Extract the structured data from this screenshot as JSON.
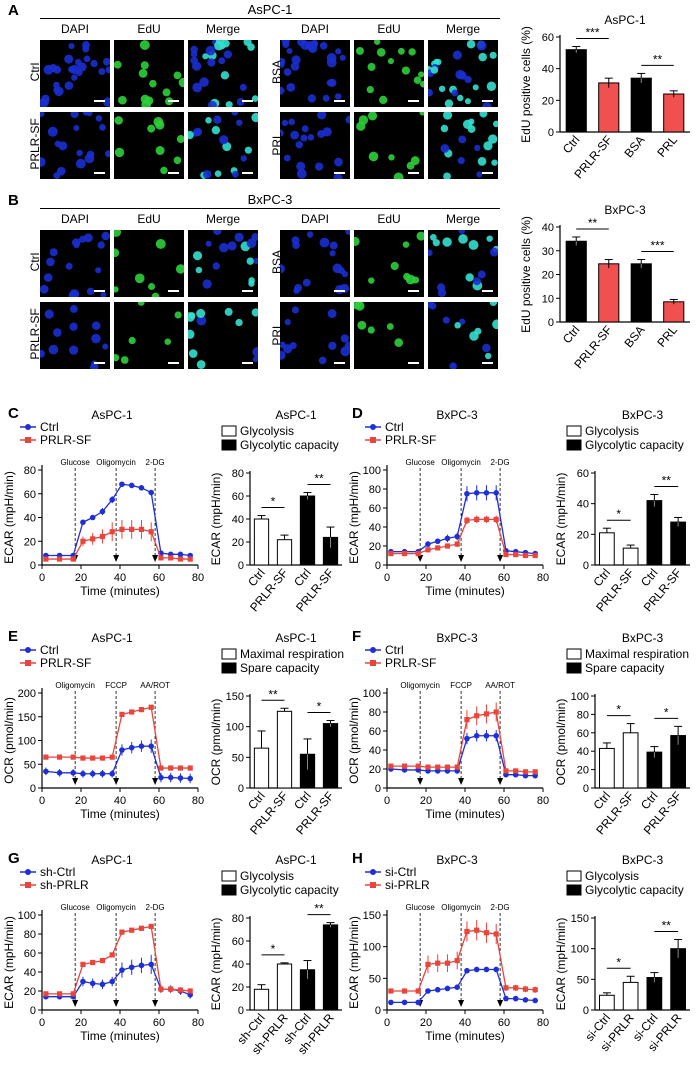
{
  "panel_labels": [
    "A",
    "B",
    "C",
    "D",
    "E",
    "F",
    "G",
    "H"
  ],
  "micro_cols": {
    "dapi": "DAPI",
    "edu": "EdU",
    "merge": "Merge"
  },
  "A": {
    "title": "AsPC-1",
    "rows_left": [
      "Ctrl",
      "PRLR-SF"
    ],
    "rows_right": [
      "BSA",
      "PRL"
    ]
  },
  "B": {
    "title": "BxPC-3",
    "rows_left": [
      "Ctrl",
      "PRLR-SF"
    ],
    "rows_right": [
      "BSA",
      "PRL"
    ]
  },
  "colors": {
    "ctrl": "#1f2fd6",
    "treat": "#e8453c",
    "bar_red": "#f05050",
    "bar_black": "#000000",
    "dapi": "#1a2fd0",
    "edu": "#2ccf3a",
    "merge": "#33e0d0"
  },
  "chart_data": [
    {
      "id": "A-bar",
      "type": "bar",
      "title": "AsPC-1",
      "ylabel": "EdU positive cells (%)",
      "categories": [
        "Ctrl",
        "PRLR-SF",
        "BSA",
        "PRL"
      ],
      "values": [
        52,
        31,
        34,
        24
      ],
      "errors": [
        2,
        3,
        3,
        2
      ],
      "fills": [
        "#000",
        "#f05050",
        "#000",
        "#f05050"
      ],
      "ylim": [
        0,
        60
      ],
      "yticks": [
        0,
        20,
        40,
        60
      ],
      "sig": [
        {
          "from": 0,
          "to": 1,
          "label": "***"
        },
        {
          "from": 2,
          "to": 3,
          "label": "**"
        }
      ]
    },
    {
      "id": "B-bar",
      "type": "bar",
      "title": "BxPC-3",
      "ylabel": "EdU positive cells (%)",
      "categories": [
        "Ctrl",
        "PRLR-SF",
        "BSA",
        "PRL"
      ],
      "values": [
        34,
        24.5,
        24.5,
        8.5
      ],
      "errors": [
        1.8,
        1.8,
        1.8,
        1
      ],
      "fills": [
        "#000",
        "#f05050",
        "#000",
        "#f05050"
      ],
      "ylim": [
        0,
        40
      ],
      "yticks": [
        0,
        10,
        20,
        30,
        40
      ],
      "sig": [
        {
          "from": 0,
          "to": 1,
          "label": "**"
        },
        {
          "from": 2,
          "to": 3,
          "label": "***"
        }
      ]
    },
    {
      "id": "C-line",
      "type": "line",
      "title": "AsPC-1",
      "xlabel": "Time (minutes)",
      "ylabel": "ECAR (mpH/min)",
      "xlim": [
        0,
        80
      ],
      "ylim": [
        0,
        80
      ],
      "xticks": [
        0,
        20,
        40,
        60,
        80
      ],
      "yticks": [
        0,
        20,
        40,
        60,
        80
      ],
      "markers": [
        {
          "x": 17,
          "label": "Glucose"
        },
        {
          "x": 38,
          "label": "Oligomycin"
        },
        {
          "x": 58,
          "label": "2-DG"
        }
      ],
      "x": [
        2,
        9,
        16,
        21,
        26,
        31,
        36,
        41,
        46,
        51,
        56,
        61,
        66,
        71,
        76
      ],
      "series": [
        {
          "name": "Ctrl",
          "values": [
            8,
            8,
            8,
            36,
            40,
            45,
            55,
            68,
            67,
            65,
            61,
            10,
            9,
            9,
            8
          ],
          "err": [
            1,
            1,
            1,
            2,
            2,
            3,
            3,
            2,
            2,
            2,
            2,
            1,
            1,
            1,
            1
          ]
        },
        {
          "name": "PRLR-SF",
          "values": [
            5,
            5,
            5,
            20,
            22,
            24,
            28,
            30,
            30,
            30,
            28,
            6,
            6,
            5,
            5
          ],
          "err": [
            1,
            1,
            1,
            4,
            5,
            6,
            8,
            8,
            8,
            8,
            8,
            1,
            1,
            1,
            1
          ]
        }
      ]
    },
    {
      "id": "C-bar",
      "type": "bar",
      "title": "AsPC-1",
      "ylabel": "ECAR (mpH/min)",
      "legend": [
        "Glycolysis",
        "Glycolytic capacity"
      ],
      "categories": [
        "Ctrl",
        "PRLR-SF",
        "Ctrl",
        "PRLR-SF"
      ],
      "values": [
        40,
        22,
        60,
        24
      ],
      "errors": [
        3,
        4,
        3,
        9
      ],
      "fills": [
        "#fff",
        "#fff",
        "#000",
        "#000"
      ],
      "ylim": [
        0,
        80
      ],
      "yticks": [
        0,
        20,
        40,
        60,
        80
      ],
      "sig": [
        {
          "from": 0,
          "to": 1,
          "label": "*"
        },
        {
          "from": 2,
          "to": 3,
          "label": "**"
        }
      ]
    },
    {
      "id": "D-line",
      "type": "line",
      "title": "BxPC-3",
      "xlabel": "Time (minutes)",
      "ylabel": "ECAR (mpH/min)",
      "xlim": [
        0,
        80
      ],
      "ylim": [
        0,
        100
      ],
      "xticks": [
        0,
        20,
        40,
        60,
        80
      ],
      "yticks": [
        0,
        20,
        40,
        60,
        80,
        100
      ],
      "markers": [
        {
          "x": 17,
          "label": "Glucose"
        },
        {
          "x": 38,
          "label": "Oligomycin"
        },
        {
          "x": 58,
          "label": "2-DG"
        }
      ],
      "x": [
        2,
        9,
        16,
        21,
        26,
        31,
        36,
        41,
        46,
        51,
        56,
        61,
        66,
        71,
        76
      ],
      "series": [
        {
          "name": "Ctrl",
          "values": [
            14,
            14,
            14,
            22,
            25,
            28,
            30,
            75,
            76,
            76,
            76,
            15,
            14,
            13,
            12
          ],
          "err": [
            2,
            2,
            2,
            3,
            3,
            4,
            4,
            8,
            8,
            8,
            8,
            2,
            2,
            2,
            2
          ]
        },
        {
          "name": "PRLR-SF",
          "values": [
            12,
            12,
            12,
            16,
            18,
            20,
            22,
            47,
            48,
            48,
            48,
            11,
            11,
            10,
            10
          ],
          "err": [
            1,
            1,
            1,
            2,
            2,
            2,
            3,
            4,
            4,
            4,
            4,
            1,
            1,
            1,
            1
          ]
        }
      ]
    },
    {
      "id": "D-bar",
      "type": "bar",
      "title": "BxPC-3",
      "ylabel": "ECAR (mpH/min)",
      "legend": [
        "Glycolysis",
        "Glycolytic capacity"
      ],
      "categories": [
        "Ctrl",
        "PRLR-SF",
        "Ctrl",
        "PRLR-SF"
      ],
      "values": [
        21,
        11,
        42,
        28
      ],
      "errors": [
        3,
        2,
        4,
        3
      ],
      "fills": [
        "#fff",
        "#fff",
        "#000",
        "#000"
      ],
      "ylim": [
        0,
        60
      ],
      "yticks": [
        0,
        20,
        40,
        60
      ],
      "sig": [
        {
          "from": 0,
          "to": 1,
          "label": "*"
        },
        {
          "from": 2,
          "to": 3,
          "label": "**"
        }
      ]
    },
    {
      "id": "E-line",
      "type": "line",
      "title": "AsPC-1",
      "xlabel": "Time (minutes)",
      "ylabel": "OCR (pmol/min)",
      "xlim": [
        0,
        80
      ],
      "ylim": [
        0,
        200
      ],
      "xticks": [
        0,
        20,
        40,
        60,
        80
      ],
      "yticks": [
        0,
        50,
        100,
        150,
        200
      ],
      "markers": [
        {
          "x": 17,
          "label": "Oligomycin"
        },
        {
          "x": 38,
          "label": "FCCP"
        },
        {
          "x": 58,
          "label": "AA/ROT"
        }
      ],
      "x": [
        2,
        9,
        16,
        21,
        26,
        31,
        36,
        41,
        46,
        51,
        56,
        61,
        66,
        71,
        76
      ],
      "series": [
        {
          "name": "Ctrl",
          "values": [
            35,
            32,
            32,
            30,
            30,
            30,
            30,
            80,
            85,
            88,
            88,
            22,
            22,
            21,
            20
          ],
          "err": [
            8,
            8,
            8,
            8,
            8,
            8,
            8,
            12,
            12,
            12,
            14,
            10,
            10,
            10,
            10
          ]
        },
        {
          "name": "PRLR-SF",
          "values": [
            65,
            65,
            65,
            63,
            63,
            63,
            65,
            155,
            160,
            165,
            170,
            42,
            42,
            42,
            42
          ],
          "err": [
            3,
            3,
            3,
            3,
            3,
            3,
            3,
            4,
            4,
            4,
            4,
            3,
            3,
            3,
            3
          ]
        }
      ]
    },
    {
      "id": "E-bar",
      "type": "bar",
      "title": "AsPC-1",
      "ylabel": "OCR (pmol/min)",
      "legend": [
        "Maximal respiration",
        "Spare capacity"
      ],
      "categories": [
        "Ctrl",
        "PRLR-SF",
        "Ctrl",
        "PRLR-SF"
      ],
      "values": [
        65,
        125,
        55,
        105
      ],
      "errors": [
        28,
        5,
        25,
        5
      ],
      "fills": [
        "#fff",
        "#fff",
        "#000",
        "#000"
      ],
      "ylim": [
        0,
        150
      ],
      "yticks": [
        0,
        50,
        100,
        150
      ],
      "sig": [
        {
          "from": 0,
          "to": 1,
          "label": "**"
        },
        {
          "from": 2,
          "to": 3,
          "label": "*"
        }
      ]
    },
    {
      "id": "F-line",
      "type": "line",
      "title": "BxPC-3",
      "xlabel": "Time (minutes)",
      "ylabel": "OCR (pmol/min)",
      "xlim": [
        0,
        80
      ],
      "ylim": [
        0,
        100
      ],
      "xticks": [
        0,
        20,
        40,
        60,
        80
      ],
      "yticks": [
        0,
        20,
        40,
        60,
        80,
        100
      ],
      "markers": [
        {
          "x": 17,
          "label": "Oligomycin"
        },
        {
          "x": 38,
          "label": "FCCP"
        },
        {
          "x": 58,
          "label": "AA/ROT"
        }
      ],
      "x": [
        2,
        9,
        16,
        21,
        26,
        31,
        36,
        41,
        46,
        51,
        56,
        61,
        66,
        71,
        76
      ],
      "series": [
        {
          "name": "Ctrl",
          "values": [
            20,
            19,
            19,
            18,
            18,
            18,
            18,
            52,
            55,
            55,
            55,
            14,
            14,
            13,
            13
          ],
          "err": [
            1,
            1,
            1,
            1,
            1,
            1,
            1,
            6,
            6,
            6,
            6,
            1,
            1,
            1,
            1
          ]
        },
        {
          "name": "PRLR-SF",
          "values": [
            23,
            23,
            23,
            22,
            22,
            22,
            22,
            72,
            76,
            78,
            80,
            18,
            18,
            17,
            17
          ],
          "err": [
            2,
            2,
            2,
            2,
            2,
            2,
            2,
            10,
            10,
            10,
            10,
            2,
            2,
            2,
            2
          ]
        }
      ]
    },
    {
      "id": "F-bar",
      "type": "bar",
      "title": "BxPC-3",
      "ylabel": "OCR (pmol/min)",
      "legend": [
        "Maximal respiration",
        "Spare capacity"
      ],
      "categories": [
        "Ctrl",
        "PRLR-SF",
        "Ctrl",
        "PRLR-SF"
      ],
      "values": [
        43,
        60,
        39,
        57
      ],
      "errors": [
        6,
        10,
        6,
        10
      ],
      "fills": [
        "#fff",
        "#fff",
        "#000",
        "#000"
      ],
      "ylim": [
        0,
        100
      ],
      "yticks": [
        0,
        20,
        40,
        60,
        80,
        100
      ],
      "sig": [
        {
          "from": 0,
          "to": 1,
          "label": "*"
        },
        {
          "from": 2,
          "to": 3,
          "label": "*"
        }
      ]
    },
    {
      "id": "G-line",
      "type": "line",
      "title": "AsPC-1",
      "xlabel": "Time (minutes)",
      "ylabel": "ECAR (mpH/min)",
      "xlim": [
        0,
        80
      ],
      "ylim": [
        0,
        100
      ],
      "xticks": [
        0,
        20,
        40,
        60,
        80
      ],
      "yticks": [
        0,
        20,
        40,
        60,
        80,
        100
      ],
      "markers": [
        {
          "x": 17,
          "label": "Glucose"
        },
        {
          "x": 38,
          "label": "Oligomycin"
        },
        {
          "x": 58,
          "label": "2-DG"
        }
      ],
      "x": [
        2,
        9,
        16,
        21,
        26,
        31,
        36,
        41,
        46,
        51,
        56,
        61,
        66,
        71,
        76
      ],
      "series": [
        {
          "name": "sh-Ctrl",
          "values": [
            14,
            14,
            14,
            30,
            28,
            27,
            30,
            42,
            45,
            47,
            48,
            22,
            22,
            20,
            16
          ],
          "err": [
            3,
            3,
            3,
            5,
            5,
            5,
            5,
            8,
            8,
            8,
            10,
            4,
            4,
            4,
            4
          ]
        },
        {
          "name": "sh-PRLR",
          "values": [
            17,
            17,
            17,
            48,
            50,
            52,
            58,
            82,
            84,
            86,
            88,
            22,
            22,
            21,
            20
          ],
          "err": [
            1,
            1,
            1,
            2,
            2,
            2,
            2,
            2,
            2,
            2,
            2,
            1,
            1,
            1,
            1
          ]
        }
      ]
    },
    {
      "id": "G-bar",
      "type": "bar",
      "title": "AsPC-1",
      "ylabel": "ECAR (mpH/min)",
      "legend": [
        "Glycolysis",
        "Glycolytic capacity"
      ],
      "categories": [
        "sh-Ctrl",
        "sh-PRLR",
        "sh-Ctrl",
        "sh-PRLR"
      ],
      "values": [
        18,
        40,
        35,
        74
      ],
      "errors": [
        4,
        1,
        8,
        2
      ],
      "fills": [
        "#fff",
        "#fff",
        "#000",
        "#000"
      ],
      "ylim": [
        0,
        80
      ],
      "yticks": [
        0,
        20,
        40,
        60,
        80
      ],
      "sig": [
        {
          "from": 0,
          "to": 1,
          "label": "*"
        },
        {
          "from": 2,
          "to": 3,
          "label": "**"
        }
      ]
    },
    {
      "id": "H-line",
      "type": "line",
      "title": "BxPC-3",
      "xlabel": "Time (minutes)",
      "ylabel": "ECAR (mpH/min)",
      "xlim": [
        0,
        80
      ],
      "ylim": [
        0,
        150
      ],
      "xticks": [
        0,
        20,
        40,
        60,
        80
      ],
      "yticks": [
        0,
        50,
        100,
        150
      ],
      "markers": [
        {
          "x": 17,
          "label": "Glucose"
        },
        {
          "x": 38,
          "label": "Oligomycin"
        },
        {
          "x": 58,
          "label": "2-DG"
        }
      ],
      "x": [
        2,
        9,
        16,
        21,
        26,
        31,
        36,
        41,
        46,
        51,
        56,
        61,
        66,
        71,
        76
      ],
      "series": [
        {
          "name": "si-Ctrl",
          "values": [
            12,
            12,
            12,
            30,
            32,
            34,
            36,
            62,
            64,
            64,
            64,
            18,
            18,
            16,
            15
          ],
          "err": [
            1,
            1,
            1,
            2,
            2,
            2,
            2,
            3,
            3,
            3,
            3,
            1,
            1,
            1,
            1
          ]
        },
        {
          "name": "si-PRLR",
          "values": [
            30,
            30,
            30,
            72,
            74,
            74,
            78,
            124,
            126,
            122,
            120,
            35,
            35,
            33,
            32
          ],
          "err": [
            4,
            4,
            4,
            14,
            14,
            14,
            14,
            16,
            16,
            16,
            16,
            5,
            5,
            5,
            5
          ]
        }
      ]
    },
    {
      "id": "H-bar",
      "type": "bar",
      "title": "BxPC-3",
      "ylabel": "ECAR (mpH/min)",
      "legend": [
        "Glycolysis",
        "Glycolytic capacity"
      ],
      "categories": [
        "si-Ctrl",
        "si-PRLR",
        "si-Ctrl",
        "si-PRLR"
      ],
      "values": [
        24,
        45,
        53,
        100
      ],
      "errors": [
        4,
        10,
        8,
        15
      ],
      "fills": [
        "#fff",
        "#fff",
        "#000",
        "#000"
      ],
      "ylim": [
        0,
        150
      ],
      "yticks": [
        0,
        50,
        100,
        150
      ],
      "sig": [
        {
          "from": 0,
          "to": 1,
          "label": "*"
        },
        {
          "from": 2,
          "to": 3,
          "label": "**"
        }
      ]
    }
  ]
}
